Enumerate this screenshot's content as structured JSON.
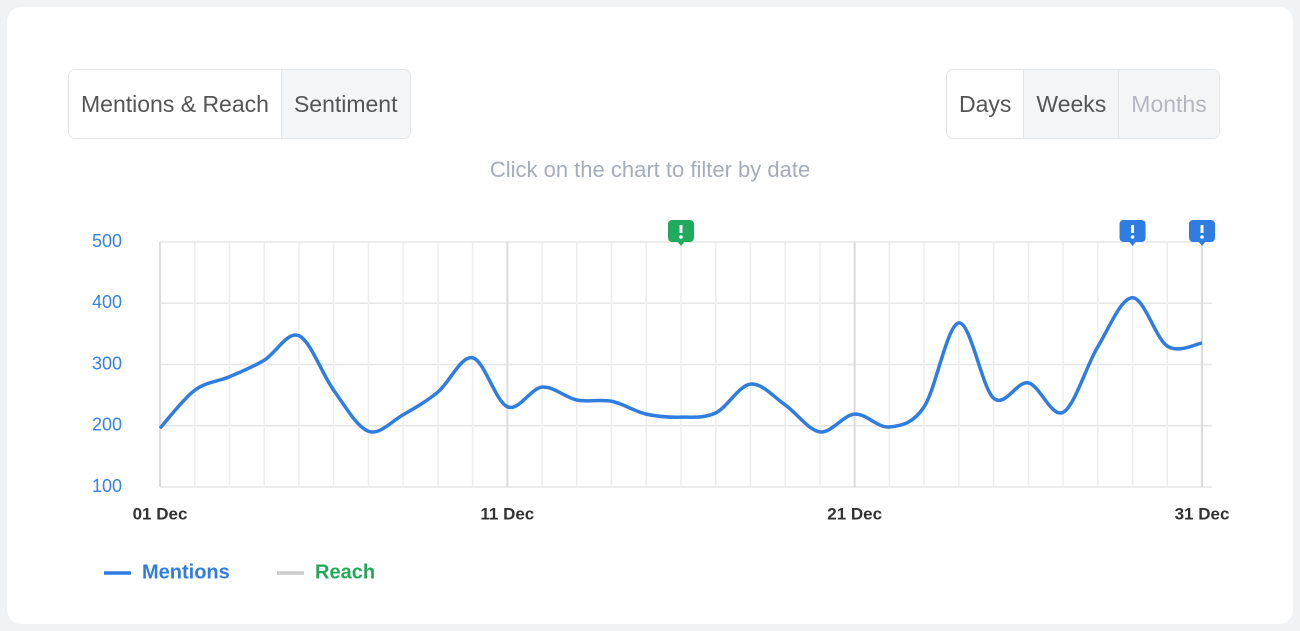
{
  "tabs": {
    "views": [
      "Mentions & Reach",
      "Sentiment"
    ],
    "periods": [
      "Days",
      "Weeks",
      "Months"
    ]
  },
  "hint": "Click on the chart to filter by date",
  "chart_data": {
    "type": "line",
    "categories": [
      "01 Dec",
      null,
      null,
      null,
      null,
      null,
      null,
      null,
      null,
      null,
      "11 Dec",
      null,
      null,
      null,
      null,
      null,
      null,
      null,
      null,
      null,
      "21 Dec",
      null,
      null,
      null,
      null,
      null,
      null,
      null,
      null,
      null,
      "31 Dec"
    ],
    "series": [
      {
        "name": "Mentions",
        "color": "#2f7de1",
        "label_color": "#2f7de1",
        "values": [
          196,
          258,
          280,
          307,
          347,
          258,
          191,
          218,
          255,
          311,
          231,
          263,
          242,
          240,
          219,
          214,
          221,
          268,
          234,
          190,
          219,
          198,
          231,
          368,
          245,
          270,
          222,
          329,
          409,
          330,
          335
        ]
      },
      {
        "name": "Reach",
        "color": "#cccccc",
        "label_color": "#22a85a",
        "values": [
          null,
          null,
          null,
          null,
          null,
          null,
          null,
          null,
          null,
          null,
          null,
          null,
          null,
          null,
          null,
          null,
          null,
          null,
          null,
          null,
          null,
          null,
          null,
          null,
          null,
          null,
          null,
          null,
          null,
          null,
          null
        ]
      }
    ],
    "ylim": [
      100,
      500
    ],
    "yticks": [
      100,
      200,
      300,
      400,
      500
    ],
    "grid": true,
    "markers": [
      {
        "index": 15,
        "color": "#1faa5d"
      },
      {
        "index": 28,
        "color": "#2f7de1"
      },
      {
        "index": 30,
        "color": "#2f7de1"
      }
    ]
  }
}
